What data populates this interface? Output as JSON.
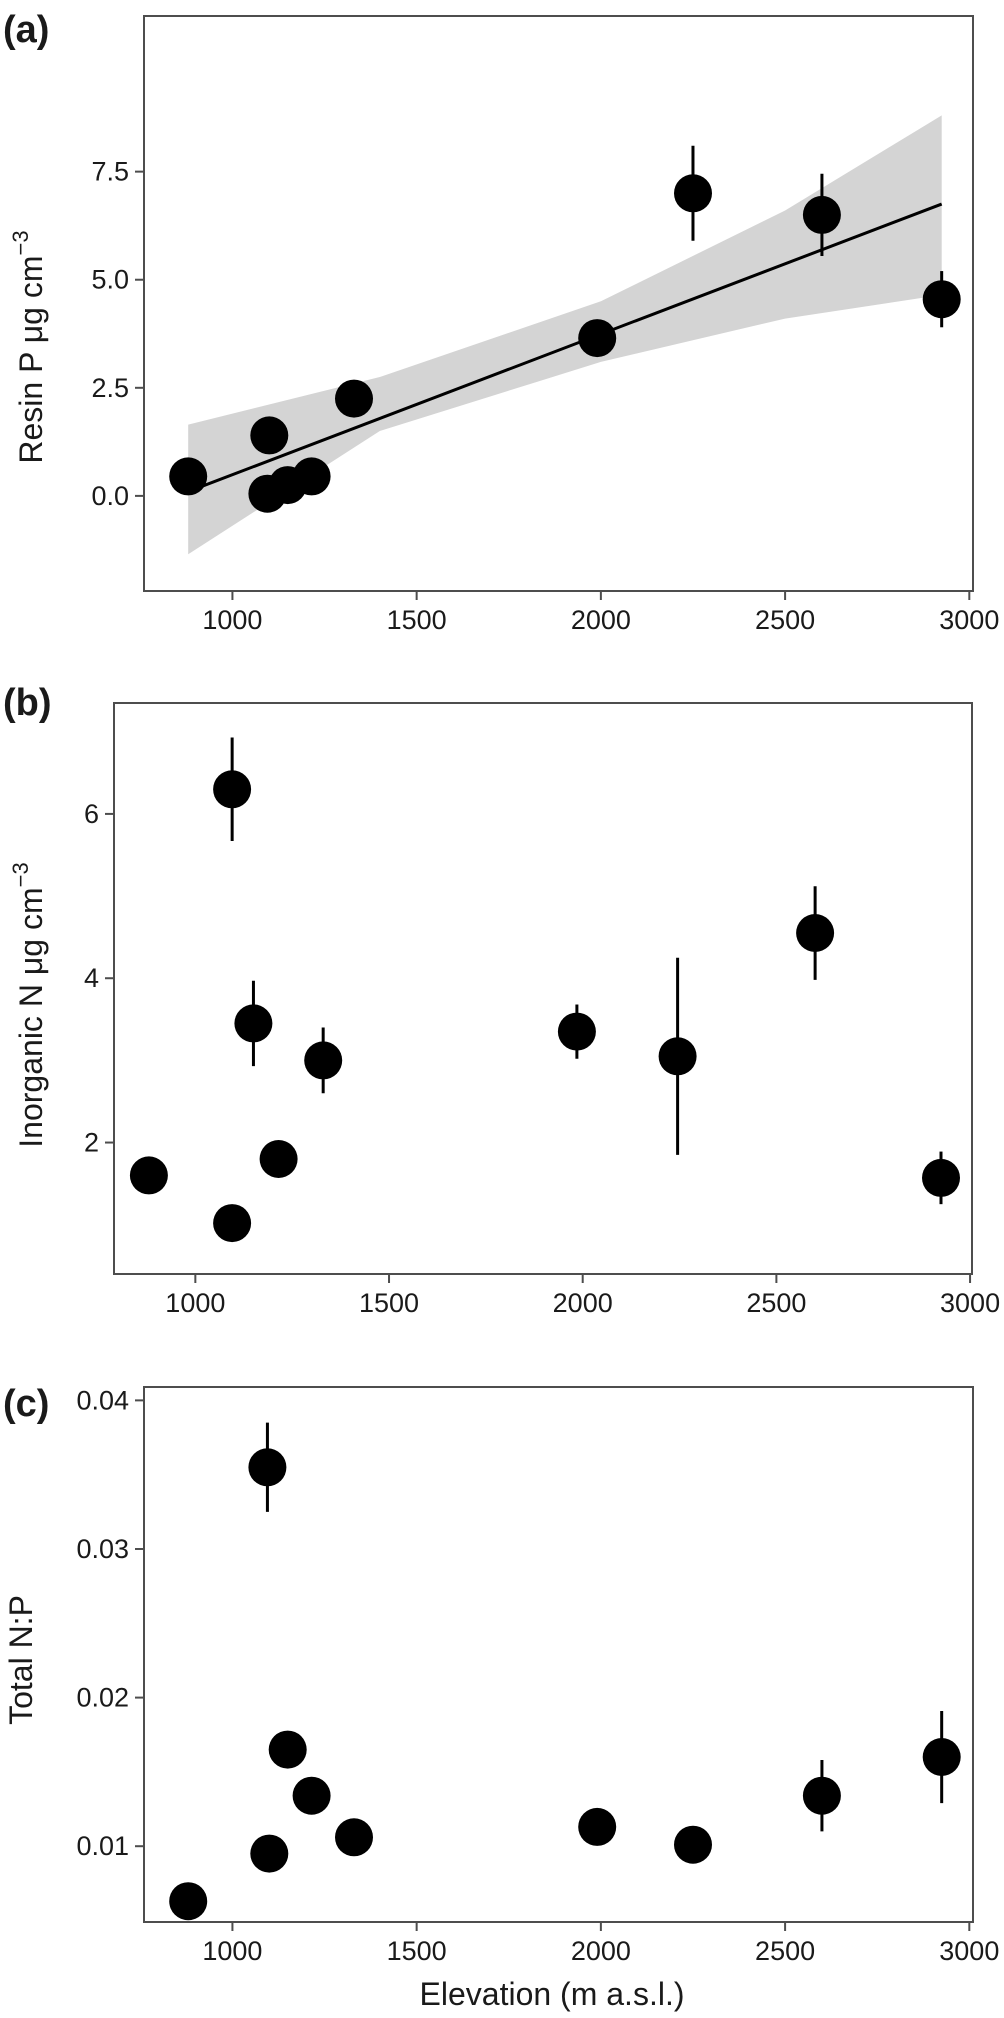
{
  "figure": {
    "xlabel": "Elevation (m a.s.l.)"
  },
  "chart_data": [
    {
      "type": "scatter",
      "panel_label": "(a)",
      "ylabel": "Resin P μg cm",
      "ylabel_sup": "−3",
      "xlim": [
        760,
        3010
      ],
      "ylim": [
        -2.2,
        11.1
      ],
      "x_ticks": [
        1000,
        1500,
        2000,
        2500,
        3000
      ],
      "y_ticks": [
        0.0,
        2.5,
        5.0,
        7.5
      ],
      "y_tick_labels": [
        "0.0",
        "2.5",
        "5.0",
        "7.5"
      ],
      "grid": false,
      "points": [
        {
          "x": 880,
          "y": 0.45,
          "err": 0
        },
        {
          "x": 1095,
          "y": 0.05,
          "err": 0
        },
        {
          "x": 1100,
          "y": 1.4,
          "err": 0
        },
        {
          "x": 1150,
          "y": 0.25,
          "err": 0
        },
        {
          "x": 1215,
          "y": 0.45,
          "err": 0
        },
        {
          "x": 1330,
          "y": 2.25,
          "err": 0
        },
        {
          "x": 1990,
          "y": 3.65,
          "err": 0
        },
        {
          "x": 2250,
          "y": 7.0,
          "err": 1.1
        },
        {
          "x": 2600,
          "y": 6.5,
          "err": 0.95
        },
        {
          "x": 2925,
          "y": 4.55,
          "err": 0.65
        }
      ],
      "fit": {
        "line": [
          [
            880,
            0.1
          ],
          [
            2925,
            6.75
          ]
        ],
        "ci_upper": [
          [
            880,
            1.65
          ],
          [
            1400,
            2.75
          ],
          [
            2000,
            4.5
          ],
          [
            2500,
            6.6
          ],
          [
            2925,
            8.8
          ]
        ],
        "ci_lower": [
          [
            880,
            -1.35
          ],
          [
            1400,
            1.5
          ],
          [
            2000,
            3.1
          ],
          [
            2500,
            4.1
          ],
          [
            2925,
            4.65
          ]
        ]
      }
    },
    {
      "type": "scatter",
      "panel_label": "(b)",
      "ylabel": "Inorganic N μg cm",
      "ylabel_sup": "−3",
      "xlim": [
        790,
        3005
      ],
      "ylim": [
        0.4,
        7.35
      ],
      "x_ticks": [
        1000,
        1500,
        2000,
        2500,
        3000
      ],
      "y_ticks": [
        2,
        4,
        6
      ],
      "y_tick_labels": [
        "2",
        "4",
        "6"
      ],
      "grid": false,
      "points": [
        {
          "x": 880,
          "y": 1.6,
          "err": 0
        },
        {
          "x": 1095,
          "y": 1.02,
          "err": 0
        },
        {
          "x": 1095,
          "y": 6.3,
          "err": 0.63
        },
        {
          "x": 1150,
          "y": 3.45,
          "err": 0.52
        },
        {
          "x": 1215,
          "y": 1.8,
          "err": 0
        },
        {
          "x": 1330,
          "y": 3.0,
          "err": 0.4
        },
        {
          "x": 1985,
          "y": 3.35,
          "err": 0.33
        },
        {
          "x": 2245,
          "y": 3.05,
          "err": 1.2
        },
        {
          "x": 2600,
          "y": 4.55,
          "err": 0.57
        },
        {
          "x": 2925,
          "y": 1.57,
          "err": 0.32
        }
      ]
    },
    {
      "type": "scatter",
      "panel_label": "(c)",
      "ylabel": "Total N:P",
      "xlim": [
        760,
        3010
      ],
      "ylim": [
        0.0049,
        0.0409
      ],
      "x_ticks": [
        1000,
        1500,
        2000,
        2500,
        3000
      ],
      "y_ticks": [
        0.01,
        0.02,
        0.03,
        0.04
      ],
      "y_tick_labels": [
        "0.01",
        "0.02",
        "0.03",
        "0.04"
      ],
      "grid": false,
      "points": [
        {
          "x": 880,
          "y": 0.0063,
          "err": 0
        },
        {
          "x": 1095,
          "y": 0.0355,
          "err": 0.003
        },
        {
          "x": 1100,
          "y": 0.0095,
          "err": 0
        },
        {
          "x": 1150,
          "y": 0.0165,
          "err": 0
        },
        {
          "x": 1215,
          "y": 0.0134,
          "err": 0
        },
        {
          "x": 1330,
          "y": 0.0106,
          "err": 0
        },
        {
          "x": 1990,
          "y": 0.0113,
          "err": 0
        },
        {
          "x": 2250,
          "y": 0.0101,
          "err": 0
        },
        {
          "x": 2600,
          "y": 0.0134,
          "err": 0.0024
        },
        {
          "x": 2925,
          "y": 0.016,
          "err": 0.0031
        }
      ]
    }
  ]
}
